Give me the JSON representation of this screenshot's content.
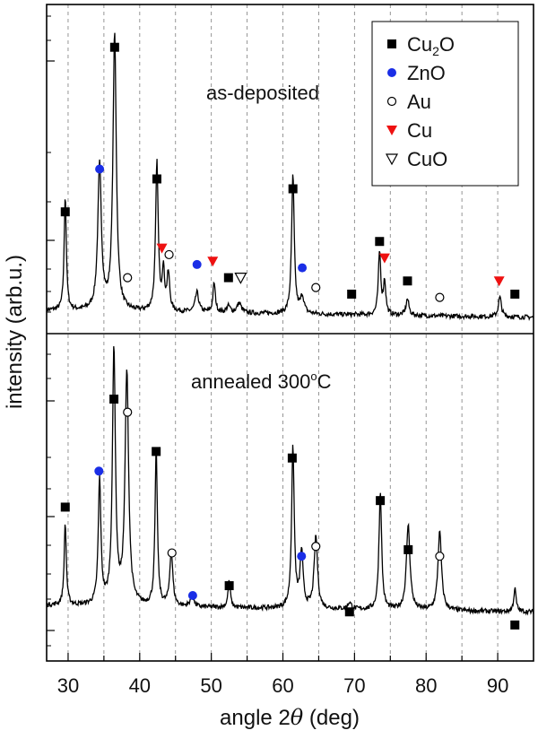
{
  "chart_data": {
    "type": "line",
    "xlabel": "angle 2θ (deg)",
    "xlabel_prefix": "angle 2",
    "xlabel_theta": "θ",
    "xlabel_suffix": " (deg)",
    "ylabel": "intensity (arb.u.)",
    "xlim": [
      27,
      95
    ],
    "xticks": [
      30,
      40,
      50,
      60,
      70,
      80,
      90
    ],
    "gridlines_x": [
      30,
      35,
      40,
      45,
      50,
      55,
      60,
      65,
      70,
      75,
      80,
      85,
      90
    ],
    "legend": {
      "position": "top-right",
      "entries": [
        {
          "key": "Cu2O",
          "label": "Cu2O",
          "label_main": "Cu",
          "label_sub": "2",
          "label_tail": "O",
          "marker": "square",
          "color": "#000000"
        },
        {
          "key": "ZnO",
          "label": "ZnO",
          "marker": "circle",
          "color": "#1a2ee6"
        },
        {
          "key": "Au",
          "label": "Au",
          "marker": "open-circle",
          "color": "#000000"
        },
        {
          "key": "Cu",
          "label": "Cu",
          "marker": "triangle-down",
          "color": "#ee1111"
        },
        {
          "key": "CuO",
          "label": "CuO",
          "marker": "open-triangle-down",
          "color": "#000000"
        }
      ]
    },
    "panels": [
      {
        "name": "as-deposited",
        "label": "as-deposited",
        "ylim": [
          0,
          100
        ],
        "baseline": 7,
        "peaks": [
          {
            "x": 29.6,
            "h": 35,
            "w": 0.18
          },
          {
            "x": 34.4,
            "h": 44,
            "w": 0.3
          },
          {
            "x": 36.5,
            "h": 84,
            "w": 0.28
          },
          {
            "x": 42.4,
            "h": 45,
            "w": 0.22
          },
          {
            "x": 43.3,
            "h": 12,
            "w": 0.2
          },
          {
            "x": 44.0,
            "h": 11,
            "w": 0.22
          },
          {
            "x": 48.0,
            "h": 6,
            "w": 0.3
          },
          {
            "x": 50.4,
            "h": 9,
            "w": 0.2
          },
          {
            "x": 52.4,
            "h": 2,
            "w": 0.3
          },
          {
            "x": 53.9,
            "h": 3,
            "w": 0.35
          },
          {
            "x": 61.4,
            "h": 42,
            "w": 0.22
          },
          {
            "x": 62.7,
            "h": 5,
            "w": 0.3
          },
          {
            "x": 73.5,
            "h": 19,
            "w": 0.2
          },
          {
            "x": 74.2,
            "h": 10,
            "w": 0.2
          },
          {
            "x": 77.4,
            "h": 5,
            "w": 0.25
          },
          {
            "x": 90.3,
            "h": 6,
            "w": 0.25
          }
        ],
        "markers": [
          {
            "type": "Cu2O",
            "x": 29.6,
            "y": 37
          },
          {
            "type": "Cu2O",
            "x": 36.5,
            "y": 87
          },
          {
            "type": "Cu2O",
            "x": 42.4,
            "y": 47
          },
          {
            "type": "Cu2O",
            "x": 52.4,
            "y": 17
          },
          {
            "type": "Cu2O",
            "x": 61.4,
            "y": 44
          },
          {
            "type": "Cu2O",
            "x": 69.6,
            "y": 12
          },
          {
            "type": "Cu2O",
            "x": 73.5,
            "y": 28
          },
          {
            "type": "Cu2O",
            "x": 77.4,
            "y": 16
          },
          {
            "type": "Cu2O",
            "x": 92.4,
            "y": 12
          },
          {
            "type": "ZnO",
            "x": 34.4,
            "y": 50
          },
          {
            "type": "ZnO",
            "x": 48.0,
            "y": 21
          },
          {
            "type": "ZnO",
            "x": 62.7,
            "y": 20
          },
          {
            "type": "Au",
            "x": 38.3,
            "y": 17
          },
          {
            "type": "Au",
            "x": 44.1,
            "y": 24
          },
          {
            "type": "Au",
            "x": 64.6,
            "y": 14
          },
          {
            "type": "Au",
            "x": 81.9,
            "y": 11
          },
          {
            "type": "Cu",
            "x": 43.1,
            "y": 26
          },
          {
            "type": "Cu",
            "x": 50.2,
            "y": 22
          },
          {
            "type": "Cu",
            "x": 74.2,
            "y": 23
          },
          {
            "type": "Cu",
            "x": 90.2,
            "y": 16
          },
          {
            "type": "CuO",
            "x": 54.1,
            "y": 17
          }
        ]
      },
      {
        "name": "annealed",
        "label_text": "annealed 300",
        "label_sup": "o",
        "label_tail": "C",
        "label": "annealed 300oC",
        "ylim": [
          0,
          100
        ],
        "baseline": 17,
        "peaks": [
          {
            "x": 29.6,
            "h": 25,
            "w": 0.18
          },
          {
            "x": 34.4,
            "h": 38,
            "w": 0.22
          },
          {
            "x": 36.4,
            "h": 78,
            "w": 0.25
          },
          {
            "x": 38.2,
            "h": 71,
            "w": 0.3
          },
          {
            "x": 42.3,
            "h": 47,
            "w": 0.2
          },
          {
            "x": 44.4,
            "h": 17,
            "w": 0.25
          },
          {
            "x": 47.3,
            "h": 4,
            "w": 0.25
          },
          {
            "x": 52.5,
            "h": 8,
            "w": 0.2
          },
          {
            "x": 61.4,
            "h": 49,
            "w": 0.22
          },
          {
            "x": 62.6,
            "h": 17,
            "w": 0.25
          },
          {
            "x": 64.6,
            "h": 22,
            "w": 0.28
          },
          {
            "x": 69.3,
            "h": 2,
            "w": 0.3
          },
          {
            "x": 73.6,
            "h": 36,
            "w": 0.22
          },
          {
            "x": 77.5,
            "h": 26,
            "w": 0.3
          },
          {
            "x": 81.9,
            "h": 24,
            "w": 0.3
          },
          {
            "x": 92.4,
            "h": 7,
            "w": 0.2
          }
        ],
        "markers": [
          {
            "type": "Cu2O",
            "x": 29.6,
            "y": 47
          },
          {
            "type": "Cu2O",
            "x": 36.4,
            "y": 80
          },
          {
            "type": "Cu2O",
            "x": 42.3,
            "y": 64
          },
          {
            "type": "Cu2O",
            "x": 52.5,
            "y": 23
          },
          {
            "type": "Cu2O",
            "x": 61.3,
            "y": 62
          },
          {
            "type": "Cu2O",
            "x": 69.3,
            "y": 15
          },
          {
            "type": "Cu2O",
            "x": 73.6,
            "y": 49
          },
          {
            "type": "Cu2O",
            "x": 77.5,
            "y": 34
          },
          {
            "type": "Cu2O",
            "x": 92.4,
            "y": 11
          },
          {
            "type": "ZnO",
            "x": 34.3,
            "y": 58
          },
          {
            "type": "ZnO",
            "x": 47.4,
            "y": 20
          },
          {
            "type": "ZnO",
            "x": 62.6,
            "y": 32
          },
          {
            "type": "Au",
            "x": 38.3,
            "y": 76
          },
          {
            "type": "Au",
            "x": 44.5,
            "y": 33
          },
          {
            "type": "Au",
            "x": 64.6,
            "y": 35
          },
          {
            "type": "Au",
            "x": 81.9,
            "y": 32
          }
        ]
      }
    ]
  }
}
